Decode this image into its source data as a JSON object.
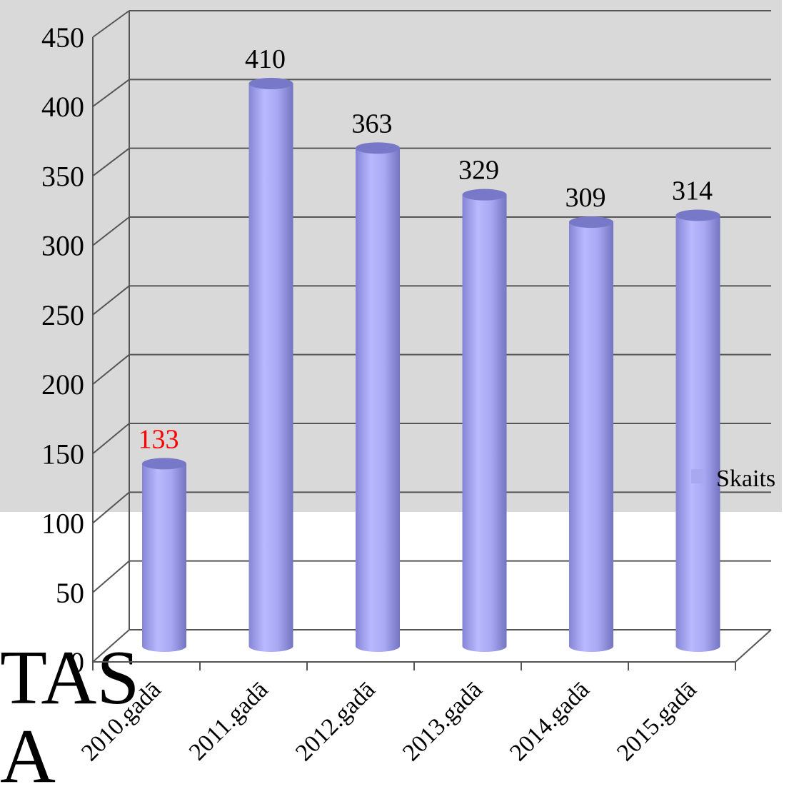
{
  "background_text": "TAS\nA",
  "chart_data": {
    "type": "bar",
    "style": "3d-cylinder",
    "categories": [
      "2010.gadā",
      "2011.gadā",
      "2012.gadā",
      "2013.gadā",
      "2014.gadā",
      "2015.gadā"
    ],
    "series": [
      {
        "name": "Skaits",
        "values": [
          133,
          410,
          363,
          329,
          309,
          314
        ],
        "color": "#a8a8f0"
      }
    ],
    "data_labels": [
      "133",
      "410",
      "363",
      "329",
      "309",
      "314"
    ],
    "data_label_colors": [
      "#ff0000",
      "#000000",
      "#000000",
      "#000000",
      "#000000",
      "#000000"
    ],
    "yticks": [
      "0",
      "50",
      "100",
      "150",
      "200",
      "250",
      "300",
      "350",
      "400",
      "450"
    ],
    "ylim": [
      0,
      450
    ],
    "grid": true,
    "legend_position": "right"
  }
}
